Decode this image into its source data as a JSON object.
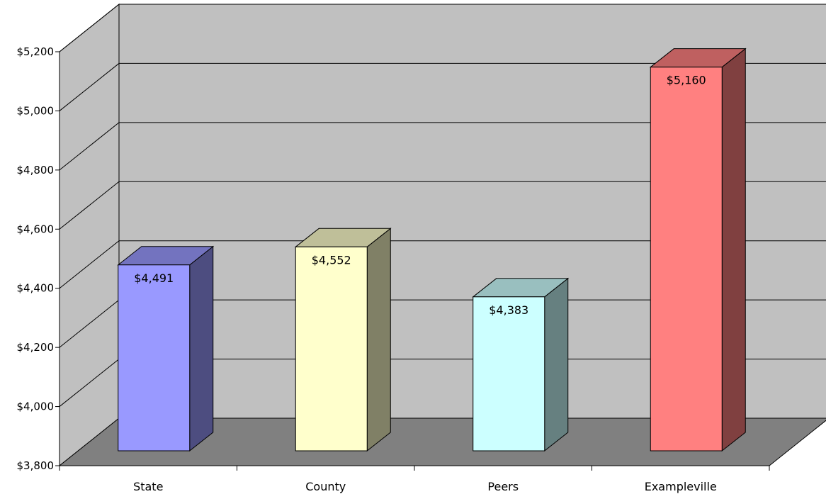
{
  "chart_data": {
    "type": "bar",
    "title": "",
    "xlabel": "",
    "ylabel": "",
    "categories": [
      "State",
      "County",
      "Peers",
      "Exampleville"
    ],
    "values": [
      4491,
      4552,
      4383,
      5160
    ],
    "value_labels": [
      "$4,491",
      "$4,552",
      "$4,383",
      "$5,160"
    ],
    "ylim": [
      3800,
      5200
    ],
    "yticks": [
      3800,
      4000,
      4200,
      4400,
      4600,
      4800,
      5000,
      5200
    ],
    "ytick_labels": [
      "$3,800",
      "$4,000",
      "$4,200",
      "$4,400",
      "$4,600",
      "$4,800",
      "$5,000",
      "$5,200"
    ],
    "grid": true,
    "legend": "none",
    "style": "3d",
    "colors": {
      "bars": [
        "#9999ff",
        "#ffffcc",
        "#ccffff",
        "#ff8080"
      ],
      "walls": "#c0c0c0",
      "floor": "#808080"
    }
  }
}
